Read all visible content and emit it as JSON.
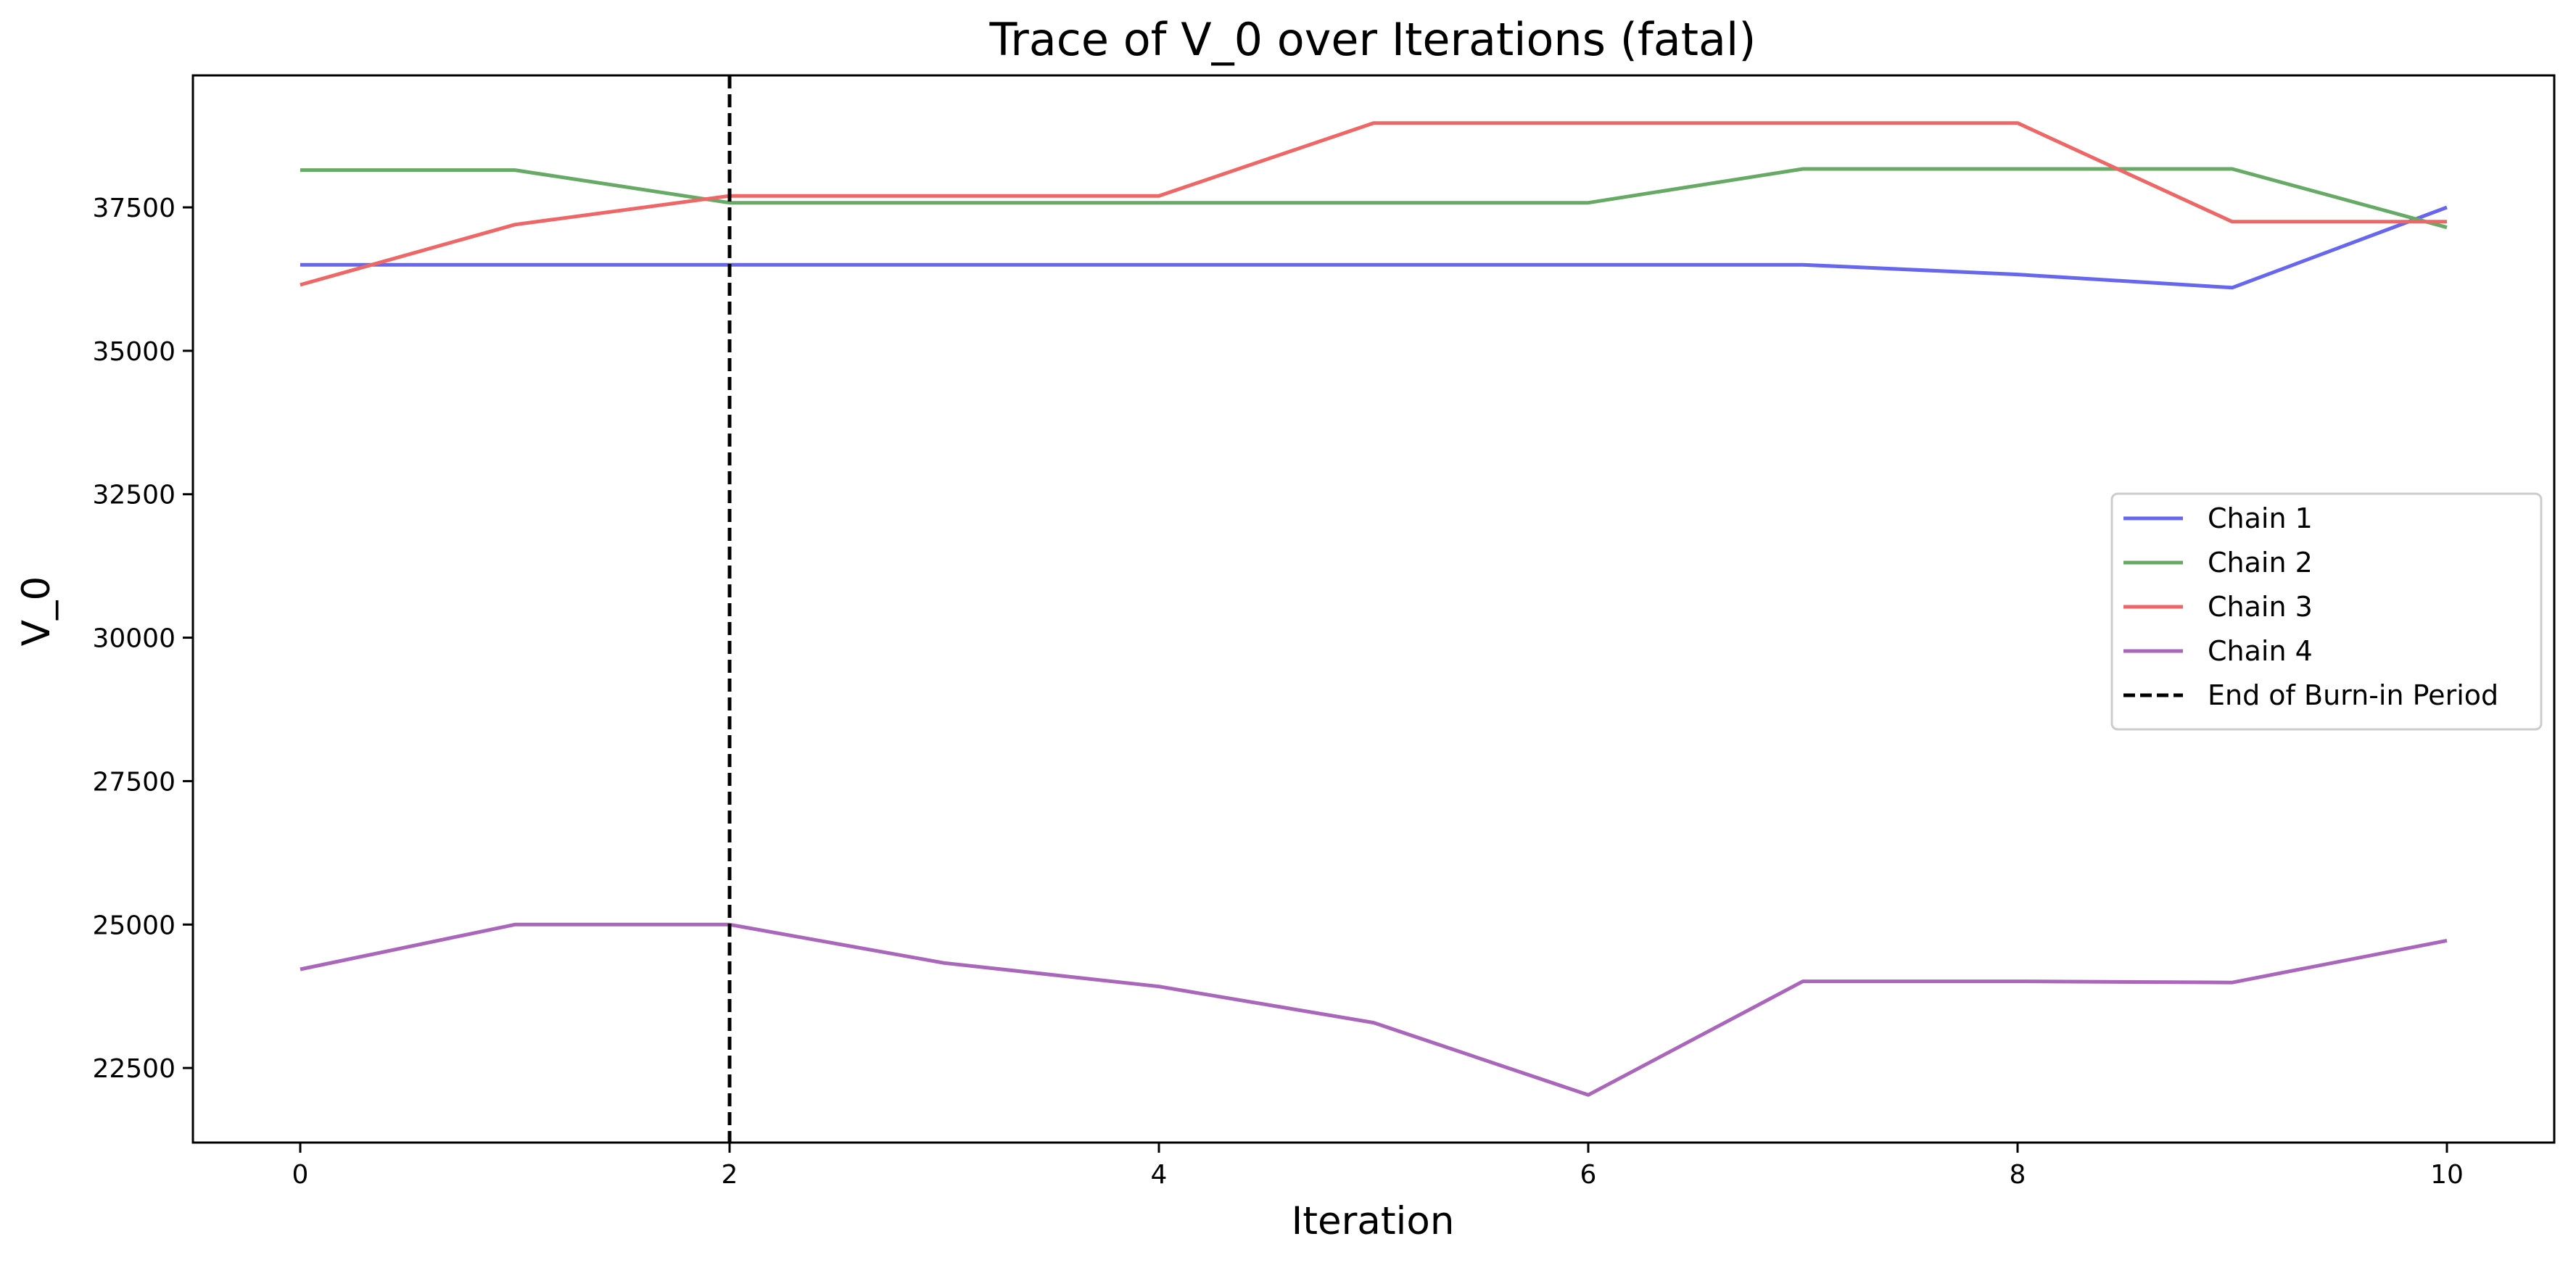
{
  "chart_data": {
    "type": "line",
    "title": "Trace of V_0 over Iterations (fatal)",
    "xlabel": "Iteration",
    "ylabel": "V_0",
    "xlim": [
      -0.5,
      10.5
    ],
    "ylim": [
      21200,
      39800
    ],
    "xticks": [
      0,
      2,
      4,
      6,
      8,
      10
    ],
    "yticks": [
      22500,
      25000,
      27500,
      30000,
      32500,
      35000,
      37500
    ],
    "grid": false,
    "legend_position": "center-right",
    "x": [
      0,
      1,
      2,
      3,
      4,
      5,
      6,
      7,
      8,
      9,
      10
    ],
    "series": [
      {
        "name": "Chain 1",
        "color": "#6666ee",
        "values": [
          36500,
          36500,
          36500,
          36500,
          36500,
          36500,
          36500,
          36500,
          36330,
          36100,
          37500
        ]
      },
      {
        "name": "Chain 2",
        "color": "#66aa66",
        "values": [
          38150,
          38150,
          37580,
          37580,
          37580,
          37580,
          37580,
          38170,
          38170,
          38170,
          37150
        ]
      },
      {
        "name": "Chain 3",
        "color": "#ee6666",
        "values": [
          36150,
          37200,
          37700,
          37700,
          37700,
          38970,
          38970,
          38970,
          38970,
          37250,
          37250
        ]
      },
      {
        "name": "Chain 4",
        "color": "#aa66bb",
        "values": [
          24220,
          25000,
          25000,
          24330,
          23920,
          23290,
          22030,
          24010,
          24010,
          23990,
          24720
        ]
      }
    ],
    "vlines": [
      {
        "name": "End of Burn-in Period",
        "x": 2,
        "color": "#000000",
        "style": "dashed"
      }
    ]
  }
}
